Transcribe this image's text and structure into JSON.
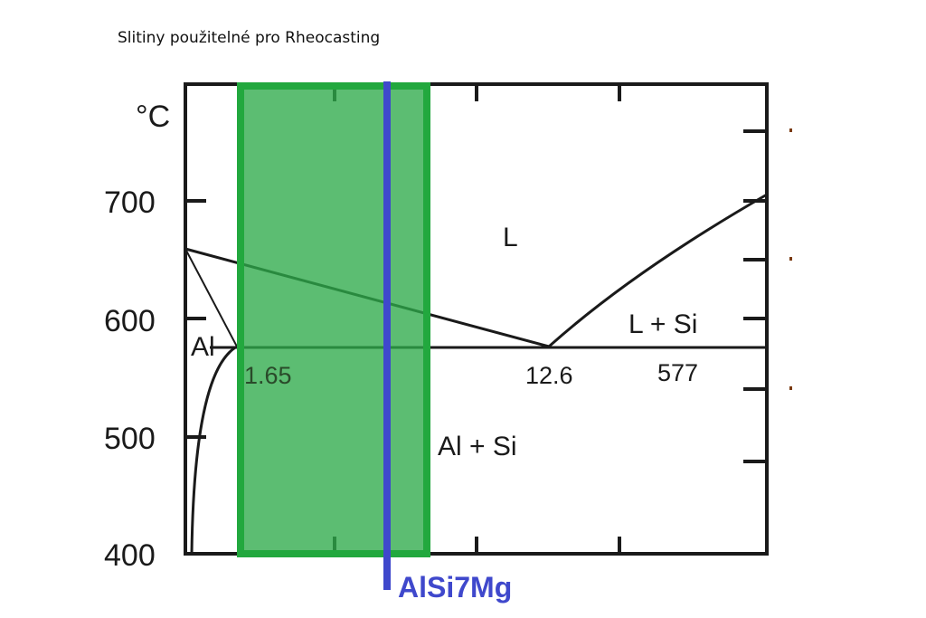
{
  "slide": {
    "title": "Slitiny použitelné pro Rheocasting"
  },
  "diagram": {
    "unit_label": "°C",
    "y_ticks": [
      "700",
      "600",
      "500",
      "400"
    ],
    "phase_labels": {
      "liquid": "L",
      "liquid_si": "L + Si",
      "alpha_al": "Al",
      "al_si": "Al + Si"
    },
    "point_labels": {
      "solubility": "1.65",
      "eutectic_composition": "12.6",
      "eutectic_temperature": "577"
    },
    "alloy": {
      "name": "AlSi7Mg",
      "color": "#3f48cc"
    },
    "highlight_color": "#2eaa4a",
    "line_color": "#1a1a1a"
  }
}
